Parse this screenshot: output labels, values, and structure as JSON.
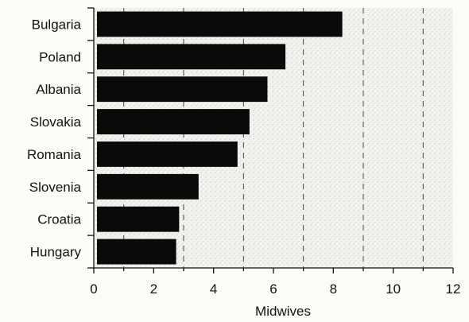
{
  "chart_data": {
    "type": "bar",
    "orientation": "horizontal",
    "categories": [
      "Bulgaria",
      "Poland",
      "Albania",
      "Slovakia",
      "Romania",
      "Slovenia",
      "Croatia",
      "Hungary"
    ],
    "values": [
      8.3,
      6.4,
      5.8,
      5.2,
      4.8,
      3.5,
      2.85,
      2.75
    ],
    "xlabel": "Midwives",
    "ylabel": "",
    "xlim": [
      0,
      12
    ],
    "xticks": [
      "0",
      "2",
      "4",
      "6",
      "8",
      "10",
      "12"
    ],
    "grid": "vertical dashed lines at odd values",
    "bar_color": "#0a0a0a",
    "background": "stippled light gray"
  }
}
